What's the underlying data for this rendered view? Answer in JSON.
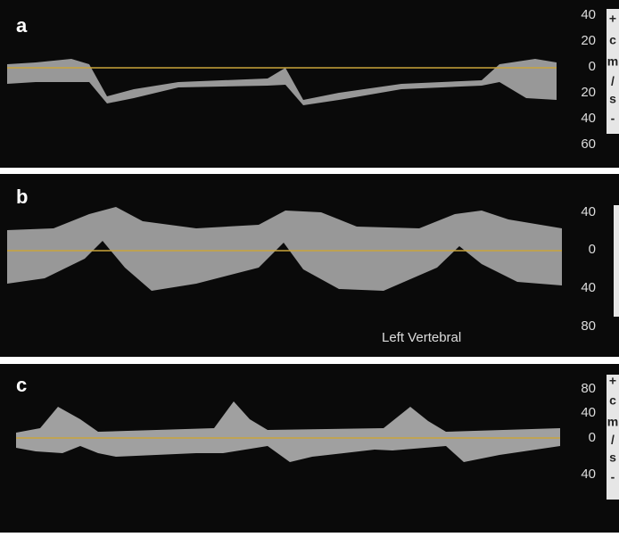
{
  "panels": [
    {
      "label": "a",
      "scale": [
        "40",
        "20",
        "0",
        "20",
        "40",
        "60"
      ],
      "units": [
        "+",
        "c",
        "m",
        "/",
        "s",
        "-"
      ]
    },
    {
      "label": "b",
      "scale": [
        "40",
        "0",
        "40",
        "80"
      ],
      "annotation": "Left Vertebral"
    },
    {
      "label": "c",
      "scale": [
        "80",
        "40",
        "0",
        "40"
      ],
      "units": [
        "+",
        "c",
        "m",
        "/",
        "s",
        "-"
      ]
    }
  ]
}
